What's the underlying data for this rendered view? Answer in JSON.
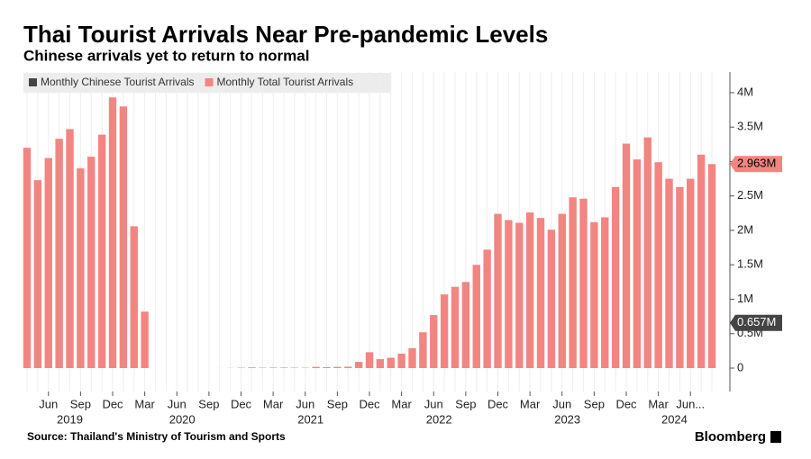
{
  "chart_data": {
    "type": "bar",
    "title": "Thai Tourist Arrivals Near Pre-pandemic Levels",
    "subtitle": "Chinese arrivals yet to return to normal",
    "source": "Source: Thailand's Ministry of Tourism and Sports",
    "brand": "Bloomberg",
    "x": [
      "2019-04",
      "2019-05",
      "2019-06",
      "2019-07",
      "2019-08",
      "2019-09",
      "2019-10",
      "2019-11",
      "2019-12",
      "2020-01",
      "2020-02",
      "2020-03",
      "2020-04",
      "2020-05",
      "2020-06",
      "2020-07",
      "2020-08",
      "2020-09",
      "2020-10",
      "2020-11",
      "2020-12",
      "2021-01",
      "2021-02",
      "2021-03",
      "2021-04",
      "2021-05",
      "2021-06",
      "2021-07",
      "2021-08",
      "2021-09",
      "2021-10",
      "2021-11",
      "2021-12",
      "2022-01",
      "2022-02",
      "2022-03",
      "2022-04",
      "2022-05",
      "2022-06",
      "2022-07",
      "2022-08",
      "2022-09",
      "2022-10",
      "2022-11",
      "2022-12",
      "2023-01",
      "2023-02",
      "2023-03",
      "2023-04",
      "2023-05",
      "2023-06",
      "2023-07",
      "2023-08",
      "2023-09",
      "2023-10",
      "2023-11",
      "2023-12",
      "2024-01",
      "2024-02",
      "2024-03",
      "2024-04",
      "2024-05",
      "2024-06",
      "2024-07",
      "2024-08"
    ],
    "xticks": [
      {
        "value": "2019-06",
        "label": "Jun"
      },
      {
        "value": "2019-09",
        "label": "Sep"
      },
      {
        "value": "2019-12",
        "label": "Dec"
      },
      {
        "value": "2020-03",
        "label": "Mar"
      },
      {
        "value": "2020-06",
        "label": "Jun"
      },
      {
        "value": "2020-09",
        "label": "Sep"
      },
      {
        "value": "2020-12",
        "label": "Dec"
      },
      {
        "value": "2021-03",
        "label": "Mar"
      },
      {
        "value": "2021-06",
        "label": "Jun"
      },
      {
        "value": "2021-09",
        "label": "Sep"
      },
      {
        "value": "2021-12",
        "label": "Dec"
      },
      {
        "value": "2022-03",
        "label": "Mar"
      },
      {
        "value": "2022-06",
        "label": "Jun"
      },
      {
        "value": "2022-09",
        "label": "Sep"
      },
      {
        "value": "2022-12",
        "label": "Dec"
      },
      {
        "value": "2023-03",
        "label": "Mar"
      },
      {
        "value": "2023-06",
        "label": "Jun"
      },
      {
        "value": "2023-09",
        "label": "Sep"
      },
      {
        "value": "2023-12",
        "label": "Dec"
      },
      {
        "value": "2024-03",
        "label": "Mar"
      },
      {
        "value": "2024-06",
        "label": "Jun..."
      }
    ],
    "year_labels": [
      "2019",
      "2020",
      "2021",
      "2022",
      "2023",
      "2024"
    ],
    "series": [
      {
        "name": "Monthly Chinese Tourist Arrivals",
        "color": "#444444",
        "last_value": 0.657,
        "last_value_label": "0.657M"
      },
      {
        "name": "Monthly Total Tourist Arrivals",
        "color": "#f28582",
        "last_value_label": "2.963M",
        "values": [
          3.2,
          2.73,
          3.05,
          3.33,
          3.47,
          2.9,
          3.07,
          3.39,
          3.93,
          3.8,
          2.06,
          0.82,
          0,
          0,
          0,
          0,
          0,
          0,
          0.001,
          0.002,
          0.006,
          0.01,
          0.006,
          0.007,
          0.008,
          0.006,
          0.005,
          0.018,
          0.014,
          0.018,
          0.02,
          0.09,
          0.23,
          0.13,
          0.15,
          0.21,
          0.29,
          0.52,
          0.77,
          1.07,
          1.18,
          1.25,
          1.5,
          1.72,
          2.24,
          2.15,
          2.11,
          2.26,
          2.18,
          2.01,
          2.24,
          2.48,
          2.46,
          2.12,
          2.19,
          2.63,
          3.26,
          3.03,
          3.35,
          2.99,
          2.75,
          2.63,
          2.75,
          3.1,
          2.963
        ]
      }
    ],
    "ylim": [
      -0.34,
      4.3
    ],
    "yticks": [
      0,
      {
        "value": 0.5,
        "label": "0.5M"
      },
      {
        "value": 1,
        "label": "1M"
      },
      {
        "value": 1.5,
        "label": "1.5M"
      },
      {
        "value": 2,
        "label": "2M"
      },
      {
        "value": 2.5,
        "label": "2.5M"
      },
      {
        "value": 3,
        "label": "3M"
      },
      {
        "value": 3.5,
        "label": "3.5M"
      },
      {
        "value": 4,
        "label": "4M"
      }
    ],
    "y_axis_side": "right"
  }
}
